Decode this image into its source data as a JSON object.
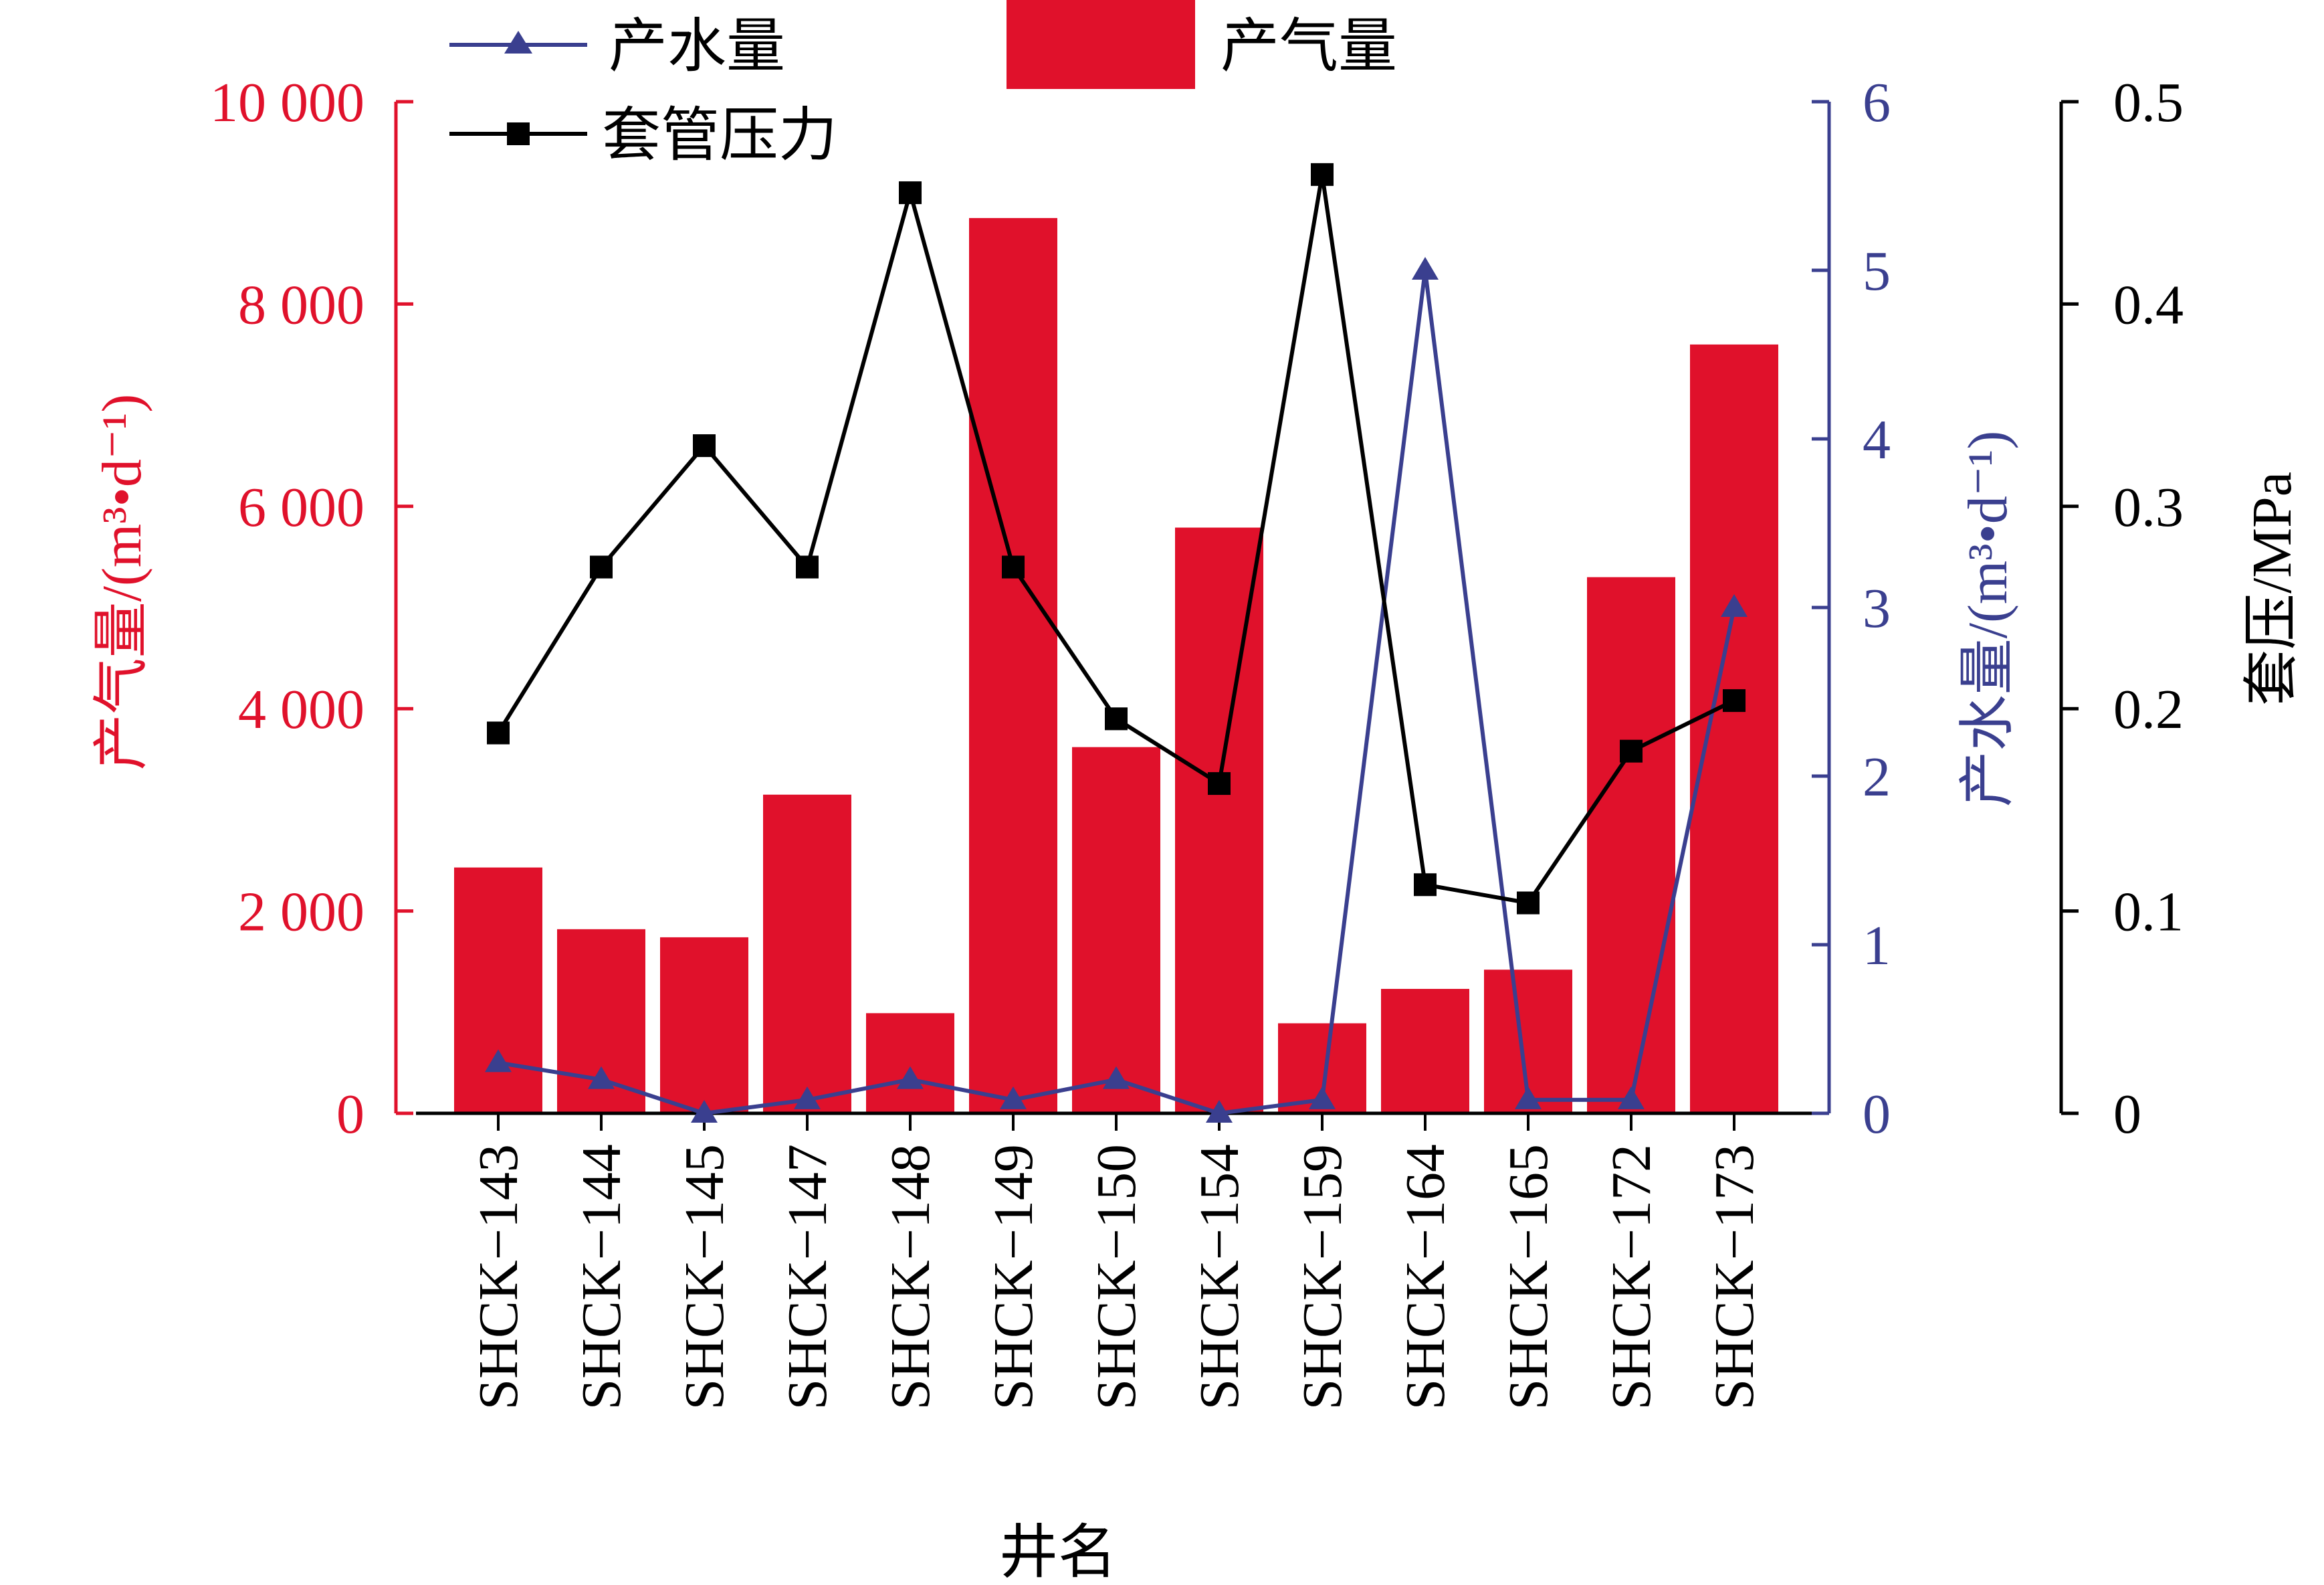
{
  "chart_data": {
    "type": "bar",
    "title": "",
    "xlabel": "井名",
    "categories": [
      "SHCK−143",
      "SHCK−144",
      "SHCK−145",
      "SHCK−147",
      "SHCK−148",
      "SHCK−149",
      "SHCK−150",
      "SHCK−154",
      "SHCK−159",
      "SHCK−164",
      "SHCK−165",
      "SHCK−172",
      "SHCK−173"
    ],
    "axes": {
      "gas": {
        "label": "产气量/(m³•d⁻¹)",
        "ylim": [
          0,
          10000
        ],
        "ticks": [
          0,
          2000,
          4000,
          6000,
          8000,
          10000
        ],
        "tick_labels": [
          "0",
          "2 000",
          "4 000",
          "6 000",
          "8 000",
          "10 000"
        ],
        "color": "#e0112b"
      },
      "water": {
        "label": "产水量/(m³•d⁻¹)",
        "ylim": [
          0,
          6
        ],
        "ticks": [
          0,
          1,
          2,
          3,
          4,
          5,
          6
        ],
        "tick_labels": [
          "0",
          "1",
          "2",
          "3",
          "4",
          "5",
          "6"
        ],
        "color": "#3a3f8f"
      },
      "pressure": {
        "label": "套压/MPa",
        "ylim": [
          0,
          0.5
        ],
        "ticks": [
          0,
          0.1,
          0.2,
          0.3,
          0.4,
          0.5
        ],
        "tick_labels": [
          "0",
          "0.1",
          "0.2",
          "0.3",
          "0.4",
          "0.5"
        ],
        "color": "#000000"
      }
    },
    "series": [
      {
        "name": "产气量",
        "type": "bar",
        "axis": "gas",
        "color": "#e0112b",
        "values": [
          2430,
          1820,
          1740,
          3150,
          990,
          8850,
          3620,
          5790,
          890,
          1230,
          1420,
          5300,
          7600
        ]
      },
      {
        "name": "产水量",
        "type": "line",
        "axis": "water",
        "marker": "triangle",
        "color": "#3a3f8f",
        "values": [
          0.3,
          0.2,
          0.0,
          0.08,
          0.2,
          0.08,
          0.2,
          0.0,
          0.08,
          5.0,
          0.08,
          0.08,
          3.0
        ]
      },
      {
        "name": "套管压力",
        "type": "line",
        "axis": "pressure",
        "marker": "square",
        "color": "#000000",
        "values": [
          0.188,
          0.27,
          0.33,
          0.27,
          0.455,
          0.27,
          0.195,
          0.163,
          0.464,
          0.113,
          0.104,
          0.179,
          0.204
        ]
      }
    ],
    "legend": {
      "position": "top-left",
      "water_label": "产水量",
      "gas_label": "产气量",
      "pressure_label": "套管压力"
    }
  }
}
